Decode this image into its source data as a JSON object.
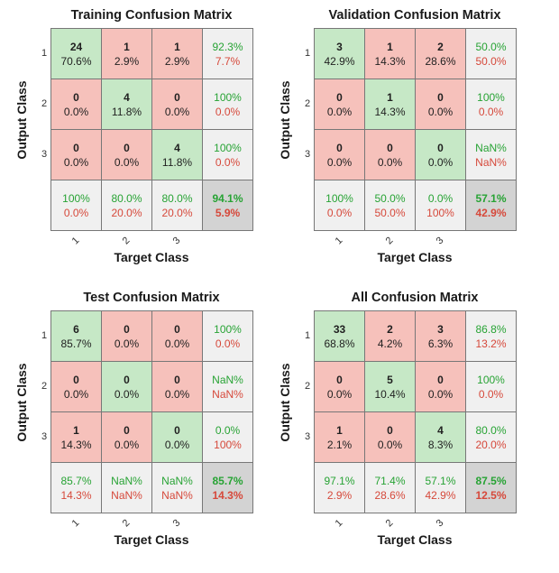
{
  "chart_data": [
    {
      "type": "table",
      "title": "Training Confusion Matrix",
      "xlabel": "Target Class",
      "ylabel": "Output Class",
      "target_classes": [
        "1",
        "2",
        "3"
      ],
      "output_classes": [
        "1",
        "2",
        "3"
      ],
      "matrix": [
        [
          {
            "count": "24",
            "pct": "70.6%"
          },
          {
            "count": "1",
            "pct": "2.9%"
          },
          {
            "count": "1",
            "pct": "2.9%"
          }
        ],
        [
          {
            "count": "0",
            "pct": "0.0%"
          },
          {
            "count": "4",
            "pct": "11.8%"
          },
          {
            "count": "0",
            "pct": "0.0%"
          }
        ],
        [
          {
            "count": "0",
            "pct": "0.0%"
          },
          {
            "count": "0",
            "pct": "0.0%"
          },
          {
            "count": "4",
            "pct": "11.8%"
          }
        ]
      ],
      "row_summary": [
        {
          "correct": "92.3%",
          "error": "7.7%"
        },
        {
          "correct": "100%",
          "error": "0.0%"
        },
        {
          "correct": "100%",
          "error": "0.0%"
        }
      ],
      "col_summary": [
        {
          "correct": "100%",
          "error": "0.0%"
        },
        {
          "correct": "80.0%",
          "error": "20.0%"
        },
        {
          "correct": "80.0%",
          "error": "20.0%"
        }
      ],
      "overall": {
        "correct": "94.1%",
        "error": "5.9%"
      }
    },
    {
      "type": "table",
      "title": "Validation Confusion Matrix",
      "xlabel": "Target Class",
      "ylabel": "Output Class",
      "target_classes": [
        "1",
        "2",
        "3"
      ],
      "output_classes": [
        "1",
        "2",
        "3"
      ],
      "matrix": [
        [
          {
            "count": "3",
            "pct": "42.9%"
          },
          {
            "count": "1",
            "pct": "14.3%"
          },
          {
            "count": "2",
            "pct": "28.6%"
          }
        ],
        [
          {
            "count": "0",
            "pct": "0.0%"
          },
          {
            "count": "1",
            "pct": "14.3%"
          },
          {
            "count": "0",
            "pct": "0.0%"
          }
        ],
        [
          {
            "count": "0",
            "pct": "0.0%"
          },
          {
            "count": "0",
            "pct": "0.0%"
          },
          {
            "count": "0",
            "pct": "0.0%"
          }
        ]
      ],
      "row_summary": [
        {
          "correct": "50.0%",
          "error": "50.0%"
        },
        {
          "correct": "100%",
          "error": "0.0%"
        },
        {
          "correct": "NaN%",
          "error": "NaN%"
        }
      ],
      "col_summary": [
        {
          "correct": "100%",
          "error": "0.0%"
        },
        {
          "correct": "50.0%",
          "error": "50.0%"
        },
        {
          "correct": "0.0%",
          "error": "100%"
        }
      ],
      "overall": {
        "correct": "57.1%",
        "error": "42.9%"
      }
    },
    {
      "type": "table",
      "title": "Test Confusion Matrix",
      "xlabel": "Target Class",
      "ylabel": "Output Class",
      "target_classes": [
        "1",
        "2",
        "3"
      ],
      "output_classes": [
        "1",
        "2",
        "3"
      ],
      "matrix": [
        [
          {
            "count": "6",
            "pct": "85.7%"
          },
          {
            "count": "0",
            "pct": "0.0%"
          },
          {
            "count": "0",
            "pct": "0.0%"
          }
        ],
        [
          {
            "count": "0",
            "pct": "0.0%"
          },
          {
            "count": "0",
            "pct": "0.0%"
          },
          {
            "count": "0",
            "pct": "0.0%"
          }
        ],
        [
          {
            "count": "1",
            "pct": "14.3%"
          },
          {
            "count": "0",
            "pct": "0.0%"
          },
          {
            "count": "0",
            "pct": "0.0%"
          }
        ]
      ],
      "row_summary": [
        {
          "correct": "100%",
          "error": "0.0%"
        },
        {
          "correct": "NaN%",
          "error": "NaN%"
        },
        {
          "correct": "0.0%",
          "error": "100%"
        }
      ],
      "col_summary": [
        {
          "correct": "85.7%",
          "error": "14.3%"
        },
        {
          "correct": "NaN%",
          "error": "NaN%"
        },
        {
          "correct": "NaN%",
          "error": "NaN%"
        }
      ],
      "overall": {
        "correct": "85.7%",
        "error": "14.3%"
      }
    },
    {
      "type": "table",
      "title": "All Confusion Matrix",
      "xlabel": "Target Class",
      "ylabel": "Output Class",
      "target_classes": [
        "1",
        "2",
        "3"
      ],
      "output_classes": [
        "1",
        "2",
        "3"
      ],
      "matrix": [
        [
          {
            "count": "33",
            "pct": "68.8%"
          },
          {
            "count": "2",
            "pct": "4.2%"
          },
          {
            "count": "3",
            "pct": "6.3%"
          }
        ],
        [
          {
            "count": "0",
            "pct": "0.0%"
          },
          {
            "count": "5",
            "pct": "10.4%"
          },
          {
            "count": "0",
            "pct": "0.0%"
          }
        ],
        [
          {
            "count": "1",
            "pct": "2.1%"
          },
          {
            "count": "0",
            "pct": "0.0%"
          },
          {
            "count": "4",
            "pct": "8.3%"
          }
        ]
      ],
      "row_summary": [
        {
          "correct": "86.8%",
          "error": "13.2%"
        },
        {
          "correct": "100%",
          "error": "0.0%"
        },
        {
          "correct": "80.0%",
          "error": "20.0%"
        }
      ],
      "col_summary": [
        {
          "correct": "97.1%",
          "error": "2.9%"
        },
        {
          "correct": "71.4%",
          "error": "28.6%"
        },
        {
          "correct": "57.1%",
          "error": "42.9%"
        }
      ],
      "overall": {
        "correct": "87.5%",
        "error": "12.5%"
      }
    }
  ]
}
